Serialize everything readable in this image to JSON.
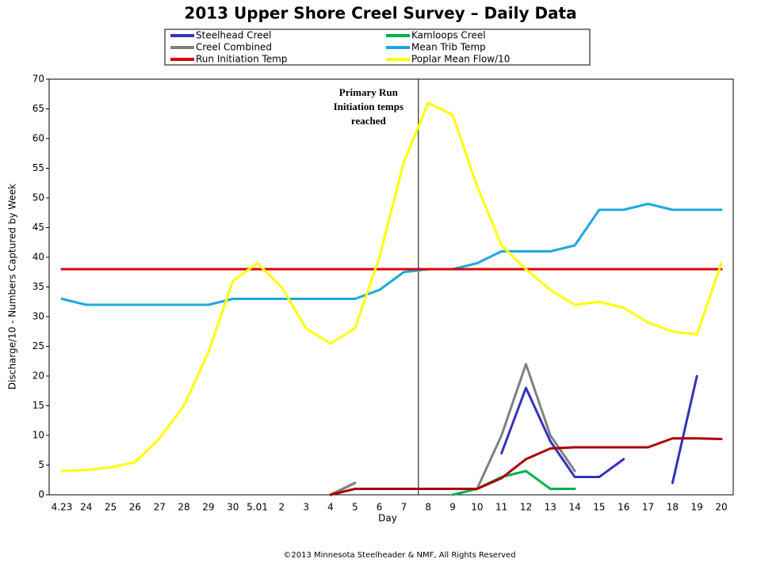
{
  "chart_data": {
    "type": "line",
    "title": "2013 Upper Shore Creel Survey – Daily Data",
    "x_label": "Day",
    "y_label": "Discharge/10 - Numbers Captured by Week",
    "annotation": [
      "Primary Run",
      "Initiation temps",
      "reached"
    ],
    "footer": "©2013 Minnesota Steelheader  & NMF, All Rights Reserved",
    "categories": [
      "4.23",
      "24",
      "25",
      "26",
      "27",
      "28",
      "29",
      "30",
      "5.01",
      "2",
      "3",
      "4",
      "5",
      "6",
      "7",
      "8",
      "9",
      "10",
      "11",
      "12",
      "13",
      "14",
      "15",
      "16",
      "17",
      "18",
      "19",
      "20"
    ],
    "ylim": [
      0,
      70
    ],
    "yticks": [
      0,
      5,
      10,
      15,
      20,
      25,
      30,
      35,
      40,
      45,
      50,
      55,
      60,
      65,
      70
    ],
    "series": [
      {
        "name": "Steelhead Creel",
        "color": "#3333bb",
        "values": [
          null,
          null,
          null,
          null,
          null,
          null,
          null,
          null,
          null,
          null,
          null,
          0,
          2,
          null,
          null,
          null,
          null,
          null,
          7,
          18,
          9,
          3,
          3,
          6,
          null,
          2,
          20,
          null
        ]
      },
      {
        "name": "Kamloops Creel",
        "color": "#00b050",
        "values": [
          null,
          null,
          null,
          null,
          null,
          null,
          null,
          null,
          null,
          null,
          null,
          null,
          null,
          null,
          null,
          null,
          0,
          1,
          3,
          4,
          1,
          1,
          null,
          null,
          null,
          null,
          null,
          null
        ]
      },
      {
        "name": "Creel Combined",
        "color": "#808080",
        "values": [
          null,
          null,
          null,
          null,
          null,
          null,
          null,
          null,
          null,
          null,
          null,
          0,
          2,
          null,
          null,
          null,
          null,
          1,
          10,
          22,
          10,
          4,
          null,
          null,
          null,
          null,
          null,
          null
        ]
      },
      {
        "name": "Mean Trib Temp",
        "color": "#1ea8e0",
        "values": [
          33,
          32,
          32,
          32,
          32,
          32,
          32,
          33,
          33,
          33,
          33,
          33,
          33,
          34.5,
          37.5,
          38,
          38,
          39,
          41,
          41,
          41,
          42,
          48,
          48,
          49,
          48,
          48,
          48
        ]
      },
      {
        "name": "Run Initiation Temp",
        "color": "#dd0000",
        "values": [
          38,
          38,
          38,
          38,
          38,
          38,
          38,
          38,
          38,
          38,
          38,
          38,
          38,
          38,
          38,
          38,
          38,
          38,
          38,
          38,
          38,
          38,
          38,
          38,
          38,
          38,
          38,
          38
        ]
      },
      {
        "name": "Poplar Mean Flow/10",
        "color": "#ffff00",
        "values": [
          4,
          4.2,
          4.6,
          5.5,
          9.5,
          15,
          24,
          36,
          39,
          35,
          28,
          25.5,
          28,
          40,
          56,
          66,
          64,
          52,
          42,
          38,
          34.5,
          32,
          32.5,
          31.5,
          29,
          27.5,
          27,
          39
        ]
      },
      {
        "color": "#aa0000",
        "values": [
          null,
          null,
          null,
          null,
          null,
          null,
          null,
          null,
          null,
          null,
          null,
          0,
          1,
          1,
          1,
          1,
          1,
          1,
          2.8,
          6,
          7.8,
          8,
          8,
          8,
          8,
          9.5,
          9.5,
          9.4
        ]
      }
    ]
  }
}
